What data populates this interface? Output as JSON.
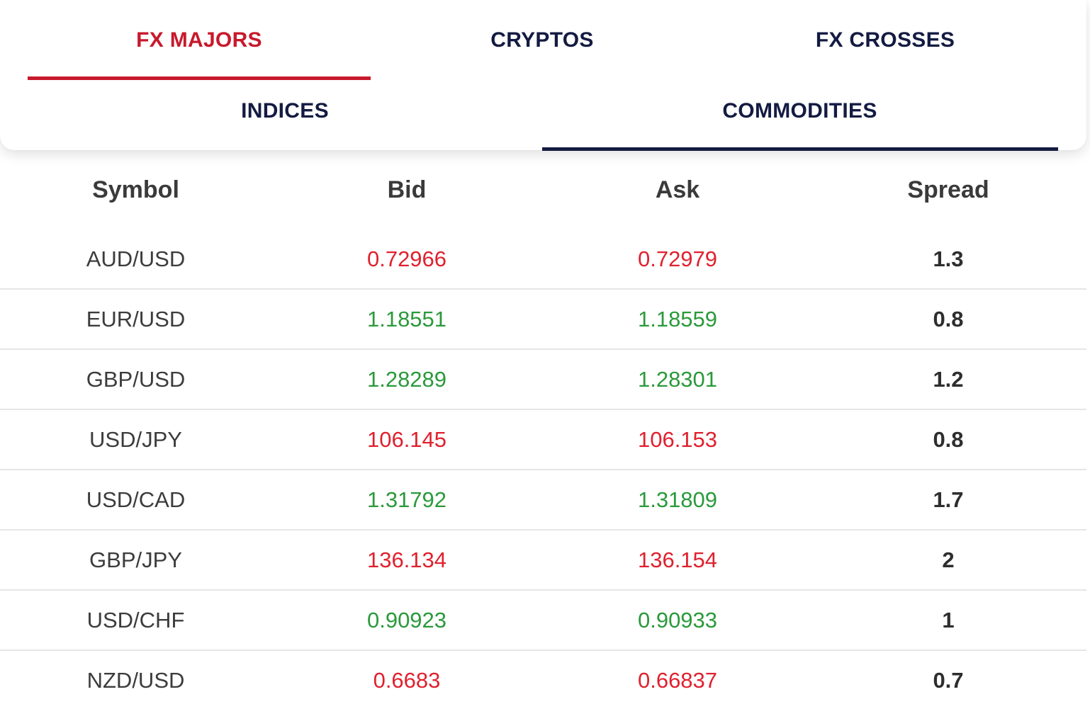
{
  "tabs": [
    {
      "label": "FX MAJORS",
      "active": true
    },
    {
      "label": "CRYPTOS",
      "active": false
    },
    {
      "label": "FX CROSSES",
      "active": false
    },
    {
      "label": "INDICES",
      "active": false
    },
    {
      "label": "COMMODITIES",
      "active": false
    }
  ],
  "colors": {
    "active_tab": "#c8192c",
    "tab_text": "#141b42",
    "price_up": "#2a9a3a",
    "price_down": "#e0212e"
  },
  "table": {
    "headers": {
      "symbol": "Symbol",
      "bid": "Bid",
      "ask": "Ask",
      "spread": "Spread"
    },
    "rows": [
      {
        "symbol": "AUD/USD",
        "bid": "0.72966",
        "ask": "0.72979",
        "spread": "1.3",
        "direction": "down"
      },
      {
        "symbol": "EUR/USD",
        "bid": "1.18551",
        "ask": "1.18559",
        "spread": "0.8",
        "direction": "up"
      },
      {
        "symbol": "GBP/USD",
        "bid": "1.28289",
        "ask": "1.28301",
        "spread": "1.2",
        "direction": "up"
      },
      {
        "symbol": "USD/JPY",
        "bid": "106.145",
        "ask": "106.153",
        "spread": "0.8",
        "direction": "down"
      },
      {
        "symbol": "USD/CAD",
        "bid": "1.31792",
        "ask": "1.31809",
        "spread": "1.7",
        "direction": "up"
      },
      {
        "symbol": "GBP/JPY",
        "bid": "136.134",
        "ask": "136.154",
        "spread": "2",
        "direction": "down"
      },
      {
        "symbol": "USD/CHF",
        "bid": "0.90923",
        "ask": "0.90933",
        "spread": "1",
        "direction": "up"
      },
      {
        "symbol": "NZD/USD",
        "bid": "0.6683",
        "ask": "0.66837",
        "spread": "0.7",
        "direction": "down"
      }
    ]
  }
}
